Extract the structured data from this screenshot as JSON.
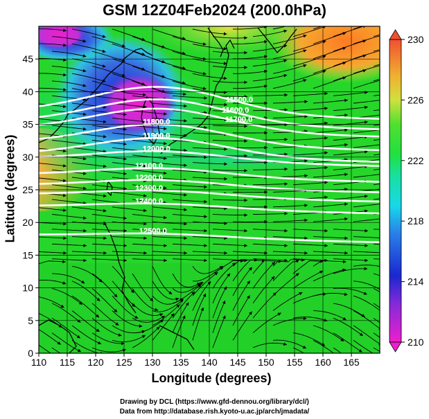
{
  "title": "GSM 12Z04Feb2024 (200.0hPa)",
  "axes": {
    "xlabel": "Longitude (degrees)",
    "ylabel": "Latitude  (degrees)",
    "x_ticks": [
      "110",
      "115",
      "120",
      "125",
      "130",
      "135",
      "140",
      "145",
      "150",
      "155",
      "160",
      "165"
    ],
    "y_ticks": [
      "0",
      "5",
      "10",
      "15",
      "20",
      "25",
      "30",
      "35",
      "40",
      "45"
    ]
  },
  "colorbar": {
    "labels": [
      "230",
      "226",
      "222",
      "218",
      "214",
      "210"
    ],
    "min": 210,
    "max": 230
  },
  "contour_labels": [
    "11500.0",
    "11600.0",
    "11700.0",
    "11800.0",
    "11900.0",
    "12000.0",
    "12100.0",
    "12200.0",
    "12300.0",
    "12400.0",
    "12500.0"
  ],
  "credits": {
    "line1": "Drawing by DCL (https://www.gfd-dennou.org/library/dcl/)",
    "line2": "Data from http://database.rish.kyoto-u.ac.jp/arch/jmadata/"
  },
  "chart_data": {
    "type": "heatmap",
    "title": "GSM 12Z04Feb2024 (200.0hPa)",
    "xlabel": "Longitude (degrees)",
    "ylabel": "Latitude  (degrees)",
    "xlim": [
      110,
      170
    ],
    "ylim": [
      0,
      50
    ],
    "colorbar_range": [
      210,
      230
    ],
    "colorbar_ticks": [
      210,
      214,
      218,
      222,
      226,
      230
    ],
    "contours": [
      {
        "label": "11500.0",
        "lon": 145.3,
        "lat": 38.4
      },
      {
        "label": "11600.0",
        "lon": 144.6,
        "lat": 36.8
      },
      {
        "label": "11700.0",
        "lon": 145.2,
        "lat": 35.4
      },
      {
        "label": "11800.0",
        "lon": 130.7,
        "lat": 35.0
      },
      {
        "label": "11900.0",
        "lon": 130.7,
        "lat": 32.9
      },
      {
        "label": "12000.0",
        "lon": 130.7,
        "lat": 30.9
      },
      {
        "label": "12100.0",
        "lon": 129.4,
        "lat": 28.3
      },
      {
        "label": "12200.0",
        "lon": 129.4,
        "lat": 26.5
      },
      {
        "label": "12300.0",
        "lon": 129.4,
        "lat": 24.9
      },
      {
        "label": "12400.0",
        "lon": 129.4,
        "lat": 22.9
      },
      {
        "label": "12500.0",
        "lon": 130.1,
        "lat": 18.3
      }
    ]
  },
  "colors": {
    "green": "#2ee02e",
    "cyan": "#10d8e0",
    "blue": "#2233cc",
    "magenta": "#ee22cc",
    "orange": "#ff7a22",
    "yellow": "#e8e040"
  }
}
